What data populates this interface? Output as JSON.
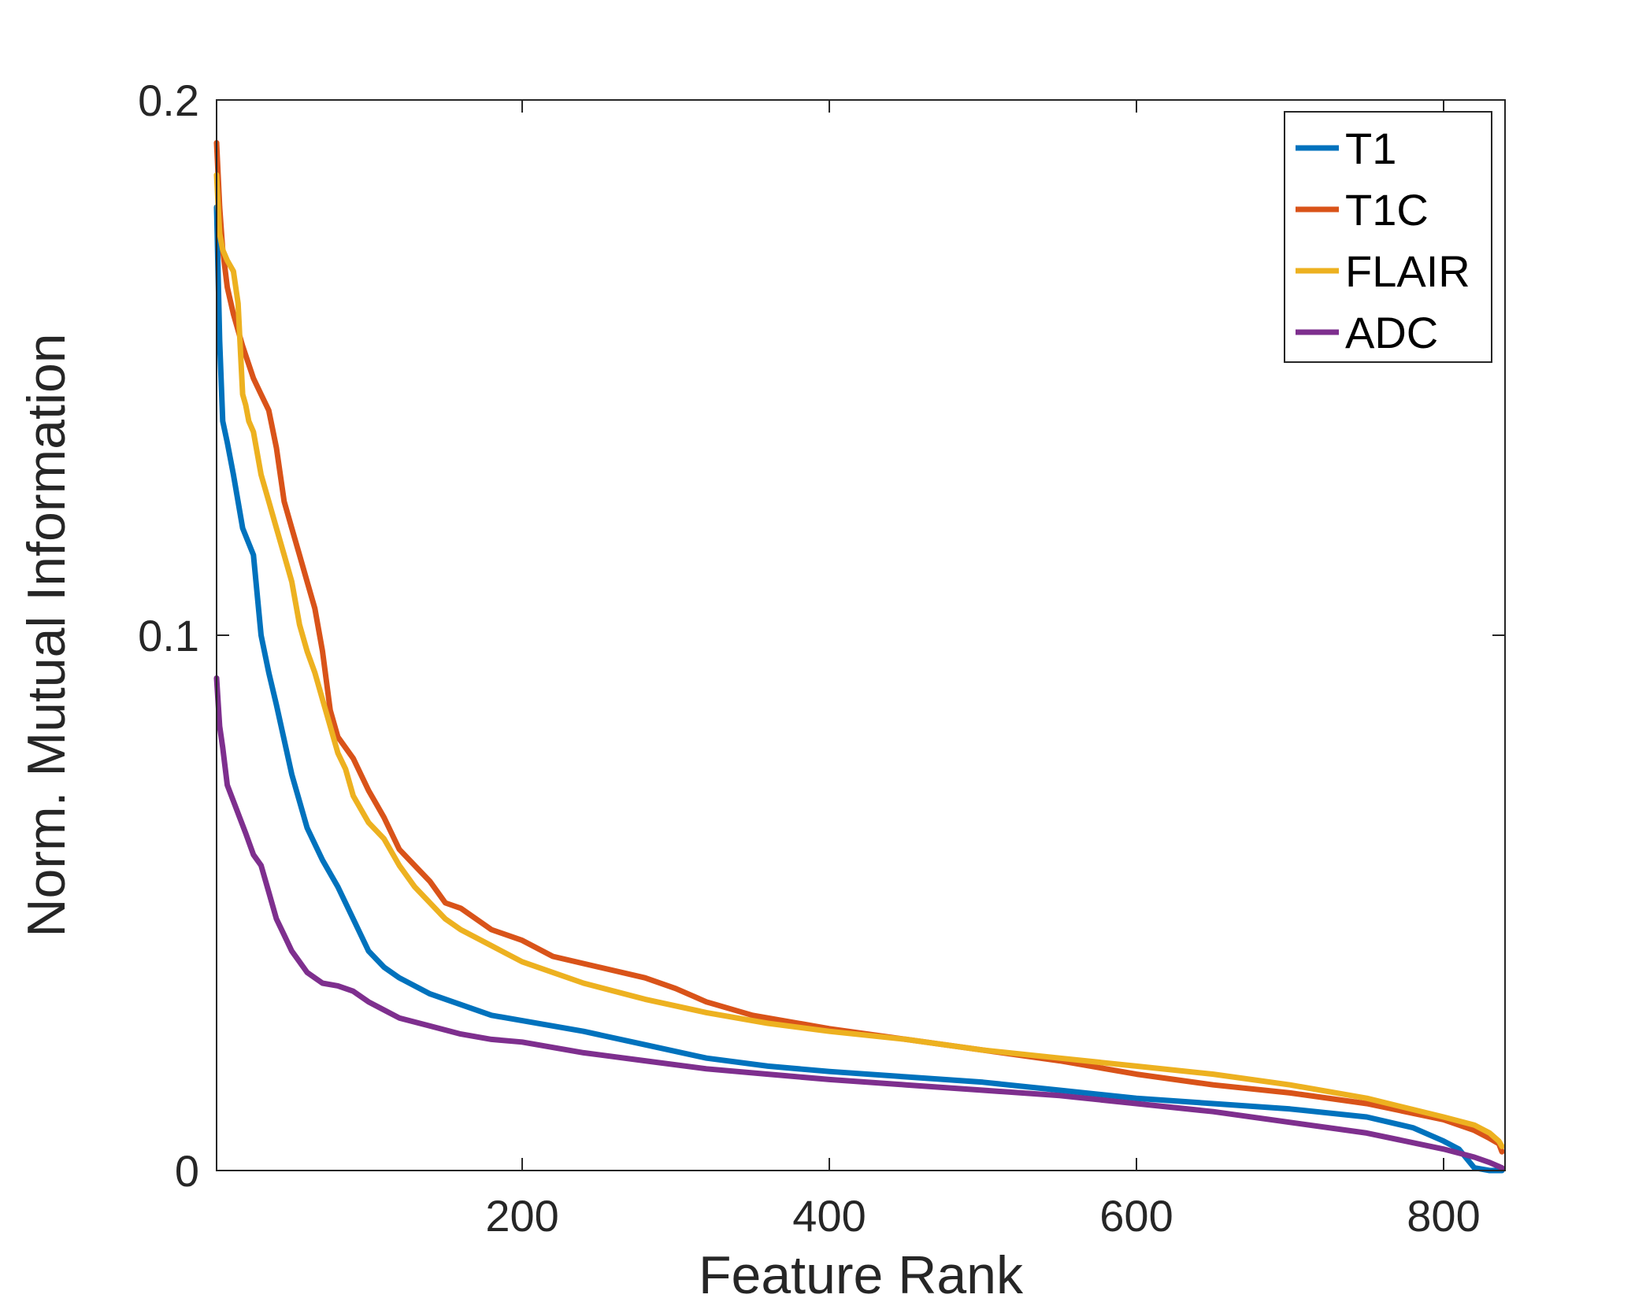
{
  "chart_data": {
    "type": "line",
    "title": "",
    "xlabel": "Feature Rank",
    "ylabel": "Norm. Mutual Information",
    "xlim": [
      1,
      840
    ],
    "ylim": [
      0,
      0.2
    ],
    "xticks": [
      200,
      400,
      600,
      800
    ],
    "xtick_labels": [
      "200",
      "400",
      "600",
      "800"
    ],
    "yticks": [
      0,
      0.1,
      0.2
    ],
    "ytick_labels": [
      "0",
      "0.1",
      "0.2"
    ],
    "grid": false,
    "legend_position": "top-right",
    "series": [
      {
        "name": "T1",
        "color": "#0072BD",
        "x": [
          1,
          3,
          5,
          8,
          12,
          18,
          25,
          30,
          35,
          40,
          50,
          60,
          70,
          80,
          90,
          100,
          110,
          120,
          140,
          160,
          180,
          200,
          240,
          280,
          320,
          360,
          400,
          450,
          500,
          550,
          600,
          650,
          700,
          750,
          780,
          800,
          810,
          820,
          830,
          838
        ],
        "y": [
          0.18,
          0.155,
          0.14,
          0.136,
          0.13,
          0.12,
          0.115,
          0.1,
          0.093,
          0.087,
          0.074,
          0.064,
          0.058,
          0.053,
          0.047,
          0.041,
          0.038,
          0.036,
          0.033,
          0.031,
          0.029,
          0.028,
          0.026,
          0.0235,
          0.021,
          0.0195,
          0.0185,
          0.0175,
          0.0165,
          0.015,
          0.0135,
          0.0125,
          0.0115,
          0.01,
          0.008,
          0.0055,
          0.004,
          0.0005,
          0.0,
          0.0
        ]
      },
      {
        "name": "T1C",
        "color": "#D95319",
        "x": [
          1,
          3,
          5,
          8,
          12,
          18,
          25,
          30,
          35,
          40,
          45,
          50,
          55,
          60,
          65,
          70,
          75,
          80,
          90,
          100,
          110,
          120,
          130,
          140,
          150,
          160,
          170,
          180,
          200,
          220,
          250,
          280,
          300,
          320,
          350,
          400,
          450,
          500,
          550,
          600,
          650,
          700,
          750,
          800,
          820,
          830,
          836,
          838
        ],
        "y": [
          0.192,
          0.18,
          0.172,
          0.165,
          0.16,
          0.154,
          0.148,
          0.145,
          0.142,
          0.135,
          0.125,
          0.12,
          0.115,
          0.11,
          0.105,
          0.097,
          0.086,
          0.081,
          0.077,
          0.071,
          0.066,
          0.06,
          0.057,
          0.054,
          0.05,
          0.049,
          0.047,
          0.045,
          0.043,
          0.04,
          0.038,
          0.036,
          0.034,
          0.0315,
          0.029,
          0.0265,
          0.0245,
          0.0225,
          0.0205,
          0.018,
          0.016,
          0.0145,
          0.0125,
          0.0095,
          0.0075,
          0.006,
          0.005,
          0.0035
        ]
      },
      {
        "name": "FLAIR",
        "color": "#EDB120",
        "x": [
          1,
          3,
          5,
          8,
          12,
          15,
          18,
          20,
          22,
          25,
          30,
          35,
          40,
          45,
          50,
          55,
          60,
          65,
          70,
          75,
          80,
          85,
          90,
          100,
          110,
          120,
          130,
          140,
          150,
          160,
          180,
          200,
          240,
          280,
          320,
          360,
          400,
          450,
          500,
          550,
          600,
          650,
          700,
          750,
          800,
          820,
          830,
          836,
          838
        ],
        "y": [
          0.186,
          0.175,
          0.172,
          0.17,
          0.168,
          0.162,
          0.145,
          0.143,
          0.14,
          0.138,
          0.13,
          0.125,
          0.12,
          0.115,
          0.11,
          0.102,
          0.097,
          0.093,
          0.088,
          0.083,
          0.078,
          0.075,
          0.07,
          0.065,
          0.062,
          0.057,
          0.053,
          0.05,
          0.047,
          0.045,
          0.042,
          0.039,
          0.035,
          0.032,
          0.0295,
          0.0275,
          0.026,
          0.0245,
          0.0225,
          0.021,
          0.0195,
          0.018,
          0.016,
          0.0135,
          0.01,
          0.0085,
          0.007,
          0.0055,
          0.0045
        ]
      },
      {
        "name": "ADC",
        "color": "#7E2F8E",
        "x": [
          1,
          3,
          5,
          8,
          12,
          16,
          20,
          25,
          30,
          35,
          40,
          45,
          50,
          55,
          60,
          65,
          70,
          80,
          90,
          100,
          110,
          120,
          140,
          160,
          180,
          200,
          240,
          280,
          320,
          360,
          400,
          450,
          500,
          550,
          600,
          650,
          700,
          750,
          800,
          820,
          830,
          838
        ],
        "y": [
          0.092,
          0.083,
          0.079,
          0.072,
          0.069,
          0.066,
          0.063,
          0.059,
          0.057,
          0.052,
          0.047,
          0.044,
          0.041,
          0.039,
          0.037,
          0.036,
          0.035,
          0.0345,
          0.0335,
          0.0315,
          0.03,
          0.0285,
          0.027,
          0.0255,
          0.0245,
          0.024,
          0.022,
          0.0205,
          0.019,
          0.018,
          0.017,
          0.016,
          0.015,
          0.014,
          0.0125,
          0.011,
          0.009,
          0.007,
          0.004,
          0.0025,
          0.0015,
          0.0005
        ]
      }
    ]
  }
}
